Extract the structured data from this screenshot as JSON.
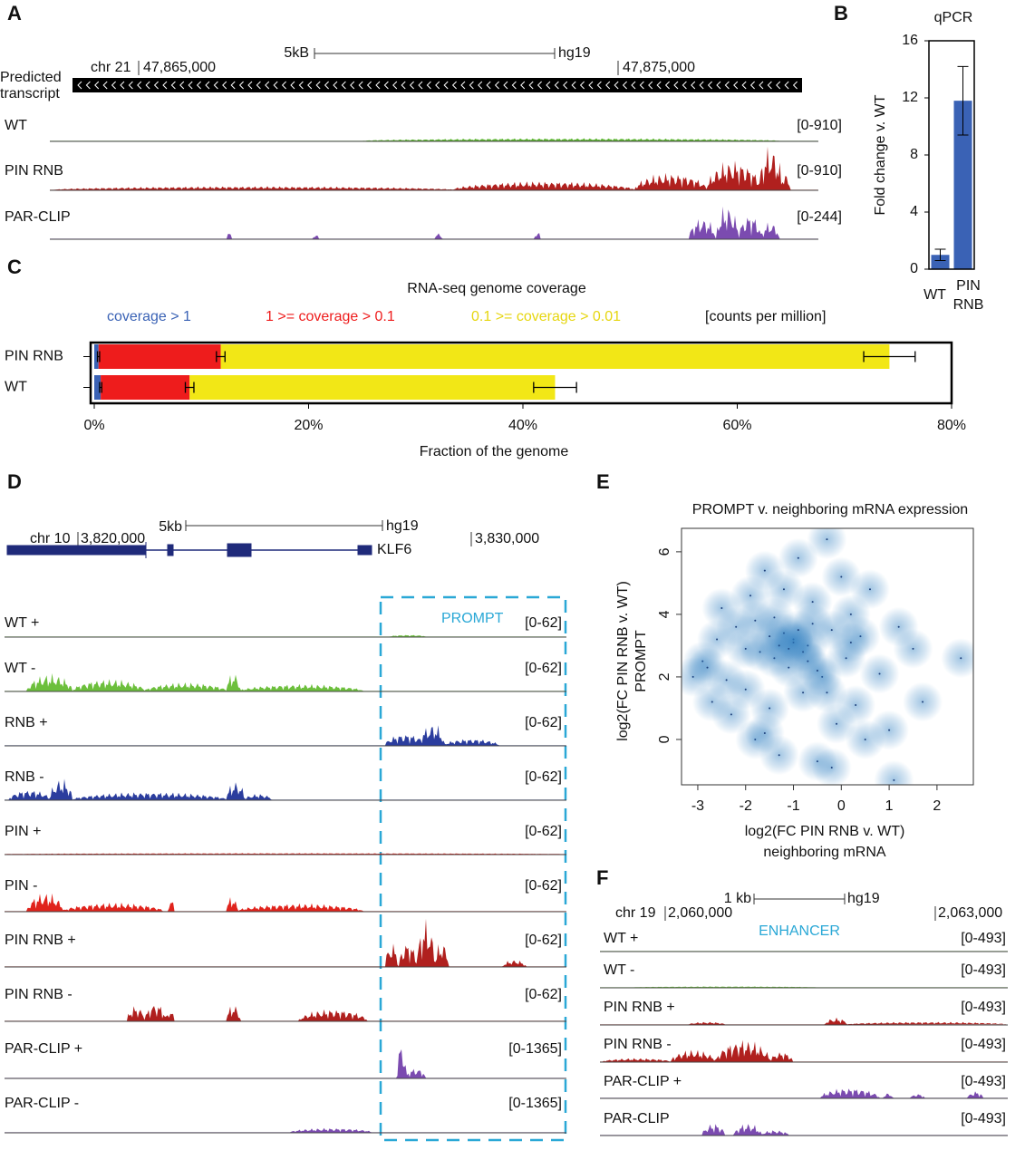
{
  "panels": [
    "A",
    "B",
    "C",
    "D",
    "E",
    "F"
  ],
  "panel_a": {
    "transcript_label": [
      "Predicted",
      "transcript"
    ],
    "scale": "5kB",
    "assembly": "hg19",
    "chrom": "chr 21",
    "positions": [
      "47,865,000",
      "47,875,000"
    ],
    "tracks": [
      {
        "name": "WT",
        "range": "[0-910]",
        "color": "#5cb531"
      },
      {
        "name": "PIN RNB",
        "range": "[0-910]",
        "color": "#b0201e"
      },
      {
        "name": "PAR-CLIP",
        "range": "[0-244]",
        "color": "#7b4bb0"
      }
    ]
  },
  "panel_d": {
    "scale": "5kb",
    "assembly": "hg19",
    "chrom": "chr 10",
    "positions": [
      "3,820,000",
      "3,830,000"
    ],
    "gene": "KLF6",
    "box_label": "PROMPT",
    "tracks": [
      {
        "name": "WT +",
        "range": "[0-62]",
        "color": "#6cbf3c"
      },
      {
        "name": "WT -",
        "range": "[0-62]",
        "color": "#6cbf3c"
      },
      {
        "name": "RNB +",
        "range": "[0-62]",
        "color": "#2b3d9e"
      },
      {
        "name": "RNB -",
        "range": "[0-62]",
        "color": "#2b3d9e"
      },
      {
        "name": "PIN +",
        "range": "[0-62]",
        "color": "#e0231c"
      },
      {
        "name": "PIN -",
        "range": "[0-62]",
        "color": "#e0231c"
      },
      {
        "name": "PIN RNB +",
        "range": "[0-62]",
        "color": "#b0201e"
      },
      {
        "name": "PIN RNB -",
        "range": "[0-62]",
        "color": "#b0201e"
      },
      {
        "name": "PAR-CLIP +",
        "range": "[0-1365]",
        "color": "#7b4bb0"
      },
      {
        "name": "PAR-CLIP -",
        "range": "[0-1365]",
        "color": "#7b4bb0"
      }
    ]
  },
  "panel_f": {
    "scale": "1 kb",
    "assembly": "hg19",
    "chrom": "chr 19",
    "positions": [
      "2,060,000",
      "2,063,000"
    ],
    "box_label": "ENHANCER",
    "tracks": [
      {
        "name": "WT +",
        "range": "[0-493]",
        "color": "#6cbf3c"
      },
      {
        "name": "WT -",
        "range": "[0-493]",
        "color": "#6cbf3c"
      },
      {
        "name": "PIN RNB +",
        "range": "[0-493]",
        "color": "#b0201e"
      },
      {
        "name": "PIN RNB -",
        "range": "[0-493]",
        "color": "#b0201e"
      },
      {
        "name": "PAR-CLIP +",
        "range": "[0-493]",
        "color": "#7b4bb0"
      },
      {
        "name": "PAR-CLIP",
        "range": "[0-493]",
        "color": "#7b4bb0"
      }
    ]
  },
  "chart_data": [
    {
      "type": "bar",
      "title": "qPCR",
      "y_label": "Fold change v. WT",
      "categories": [
        "WT",
        "PIN RNB"
      ],
      "values": [
        1,
        11.8
      ],
      "errors": [
        0.4,
        2.4
      ],
      "color": "#3a62b5",
      "ylim": [
        0,
        16
      ],
      "yticks": [
        0,
        4,
        8,
        12,
        16
      ]
    },
    {
      "type": "stacked_hbar",
      "title": "RNA-seq genome coverage",
      "note": "[counts per million]",
      "x_label": "Fraction of the genome",
      "categories": [
        "PIN RNB",
        "WT"
      ],
      "series": [
        {
          "name": "coverage > 1",
          "color": "#3a62b5",
          "values": [
            0.4,
            0.6
          ],
          "errors": [
            0.1,
            0.1
          ]
        },
        {
          "name": "1 >= coverage > 0.1",
          "color": "#ee1c1c",
          "values": [
            11.4,
            8.3
          ],
          "errors": [
            0.4,
            0.4
          ]
        },
        {
          "name": "0.1 >= coverage > 0.01",
          "color": "#f2e716",
          "values": [
            62.4,
            34.1
          ],
          "errors": [
            2.4,
            2.0
          ]
        }
      ],
      "xlim": [
        0,
        80
      ],
      "xticks": [
        {
          "value": 0,
          "label": "0%"
        },
        {
          "value": 20,
          "label": "20%"
        },
        {
          "value": 40,
          "label": "40%"
        },
        {
          "value": 60,
          "label": "60%"
        },
        {
          "value": 80,
          "label": "80%"
        }
      ]
    },
    {
      "type": "scatter",
      "title": "PROMPT v. neighboring mRNA expression",
      "x_label": [
        "log2(FC PIN RNB v. WT)",
        "neighboring mRNA"
      ],
      "y_label": [
        "log2(FC PIN RNB v. WT)",
        "PROMPT"
      ],
      "color": "#2f7fc1",
      "x": [
        -3.1,
        -2.9,
        -2.7,
        -2.6,
        -2.5,
        -2.3,
        -2.2,
        -2.0,
        -1.9,
        -1.8,
        -1.7,
        -1.6,
        -1.5,
        -1.4,
        -1.3,
        -1.2,
        -1.1,
        -1.0,
        -0.9,
        -0.8,
        -0.7,
        -0.6,
        -0.5,
        -0.4,
        -0.3,
        -0.2,
        -0.1,
        0.0,
        0.1,
        0.2,
        0.3,
        0.4,
        0.5,
        0.6,
        0.8,
        1.0,
        1.2,
        1.5,
        1.7,
        2.5,
        -1.0,
        -1.2,
        -0.8,
        -1.4,
        -0.6,
        -1.1,
        -0.9,
        -1.3,
        -0.7,
        -1.5,
        -2.4,
        -2.0,
        -1.8,
        -0.5,
        0.2,
        -0.3,
        -1.6,
        -2.8,
        1.1,
        -0.2
      ],
      "values": [
        2.0,
        2.5,
        1.2,
        3.2,
        4.2,
        0.8,
        3.6,
        1.6,
        4.6,
        0.0,
        2.8,
        5.4,
        1.0,
        3.9,
        -0.5,
        4.8,
        2.3,
        3.2,
        5.8,
        1.5,
        3.0,
        4.4,
        -0.7,
        2.0,
        6.4,
        3.5,
        0.5,
        5.2,
        2.6,
        4.0,
        1.1,
        3.3,
        0.0,
        4.8,
        2.1,
        0.3,
        3.6,
        2.9,
        1.2,
        2.6,
        3.1,
        3.4,
        2.8,
        2.6,
        3.7,
        2.9,
        3.5,
        3.0,
        2.5,
        3.3,
        1.9,
        2.9,
        3.8,
        2.2,
        3.1,
        1.5,
        0.2,
        2.3,
        -1.3,
        -0.9
      ],
      "xlim": [
        -3.34,
        2.76
      ],
      "ylim": [
        -1.45,
        6.75
      ],
      "xticks": [
        -3,
        -2,
        -1,
        0,
        1,
        2
      ],
      "yticks": [
        0,
        2,
        4,
        6
      ]
    }
  ]
}
